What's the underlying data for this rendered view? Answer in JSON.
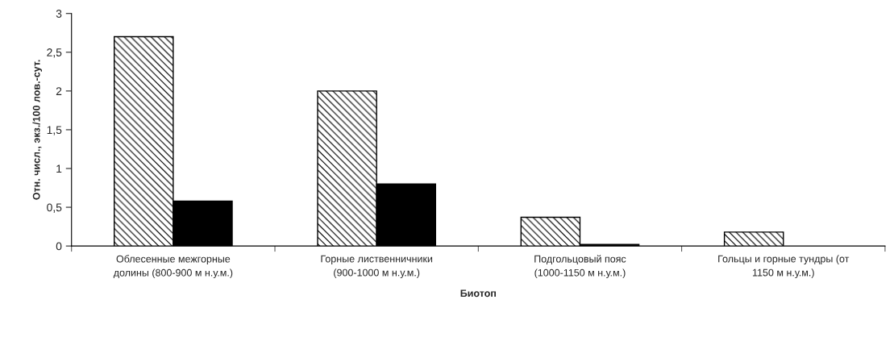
{
  "chart_data": {
    "type": "bar",
    "categories": [
      "Облесенные межгорные долины (800-900 м н.у.м.)",
      "Горные лиственничники (900-1000 м н.у.м.)",
      "Подгольцовый пояс (1000-1150 м н.у.м.)",
      "Гольцы и горные тундры (от 1150 м н.у.м.)"
    ],
    "series": [
      {
        "color": "#000000",
        "values": [
          2.7,
          2.0,
          0.37,
          0.18
        ]
      },
      {
        "color": "#000000",
        "values": [
          0.58,
          0.8,
          0.02,
          null
        ]
      }
    ],
    "xlabel": "Биотоп",
    "ylabel": "Отн. числ., экз./100 лов.-сут.",
    "ylim": [
      0,
      3
    ],
    "yticks": [
      0,
      {
        "value": 0.5,
        "label": "0,5"
      },
      1,
      {
        "value": 1.5,
        "label": "1,5"
      },
      2,
      {
        "value": 2.5,
        "label": "2,5"
      },
      3
    ],
    "grid": false,
    "legend": false
  }
}
